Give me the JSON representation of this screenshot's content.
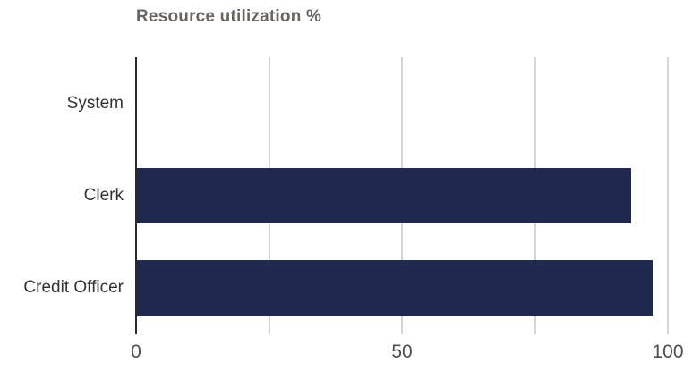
{
  "chart_data": {
    "type": "bar",
    "orientation": "horizontal",
    "title": "Resource utilization %",
    "categories": [
      "System",
      "Clerk",
      "Credit Officer"
    ],
    "values": [
      0,
      93,
      97
    ],
    "xlabel": "",
    "ylabel": "",
    "xlim": [
      0,
      100
    ],
    "xticks": [
      0,
      50,
      100
    ],
    "gridlines": [
      25,
      50,
      75,
      100
    ],
    "legend": "none",
    "grid": "vertical-only",
    "colors": {
      "bar": "#1f2a4e",
      "axis": "#2b2b2b",
      "gridline": "#d4d4d4",
      "title": "#6b6560",
      "category_label": "#333333",
      "tick_label": "#4d4d4d",
      "background": "#ffffff"
    }
  }
}
